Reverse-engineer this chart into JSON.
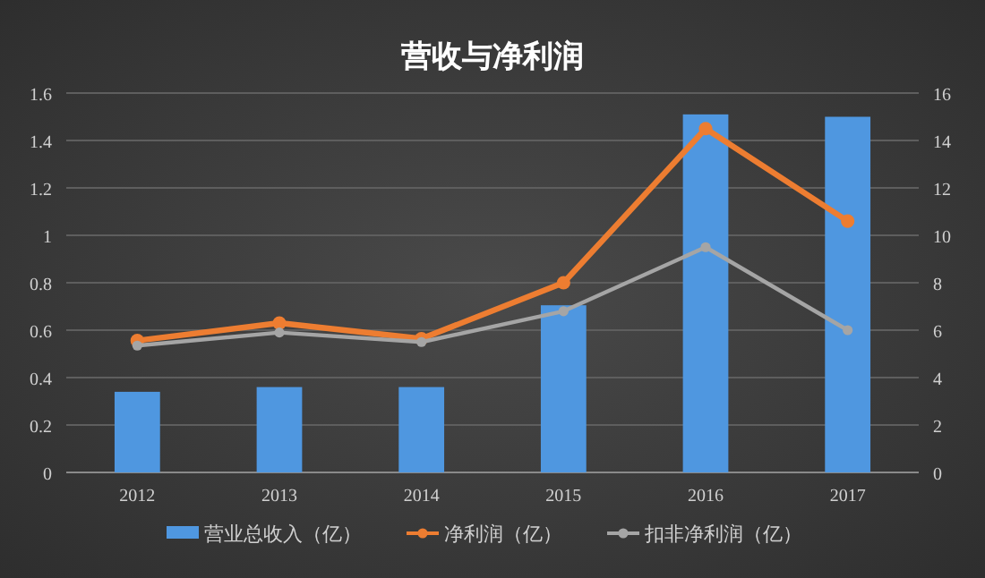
{
  "chart_data": {
    "type": "bar",
    "title": "营收与净利润",
    "categories": [
      "2012",
      "2013",
      "2014",
      "2015",
      "2016",
      "2017"
    ],
    "series": [
      {
        "name": "营业总收入（亿）",
        "axis": "y2",
        "color": "#4f97e0",
        "values": [
          3.4,
          3.6,
          3.6,
          7.05,
          15.1,
          15.0
        ]
      },
      {
        "name": "净利润（亿）",
        "type": "line",
        "color": "#ed7d31",
        "marker": "circle",
        "values": [
          0.556,
          0.63,
          0.564,
          0.8,
          1.45,
          1.06
        ]
      },
      {
        "name": "扣非净利润（亿）",
        "type": "line",
        "color": "#a5a5a5",
        "marker": "circle",
        "values": [
          0.535,
          0.59,
          0.55,
          0.68,
          0.95,
          0.6
        ]
      }
    ],
    "ylim": [
      0,
      1.6
    ],
    "yticks": [
      0,
      0.2,
      0.4,
      0.6,
      0.8,
      1,
      1.2,
      1.4,
      1.6
    ],
    "y2lim": [
      0,
      16
    ],
    "y2ticks": [
      0,
      2,
      4,
      6,
      8,
      10,
      12,
      14,
      16
    ],
    "grid": "y",
    "legend": "bottom"
  }
}
